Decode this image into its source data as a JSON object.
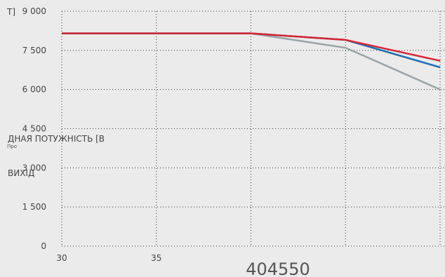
{
  "chart_data": {
    "type": "line",
    "title": "",
    "ylabel_parts": [
      "Т]",
      "ДНАЯ ПОТУЖНІСТЬ [В",
      "Про",
      "ВИХІД"
    ],
    "xlabel": "404550",
    "x_tick_labels": [
      "30",
      "35"
    ],
    "y_tick_labels": [
      "9 000",
      "7 500",
      "6 000",
      "4 500",
      "3 000",
      "1 500",
      "0"
    ],
    "xlim": [
      30,
      50
    ],
    "ylim": [
      0,
      9000
    ],
    "y_ticks": [
      9000,
      7500,
      6000,
      4500,
      3000,
      1500,
      0
    ],
    "x_gridlines": [
      30,
      35,
      40,
      45,
      50
    ],
    "grid": true,
    "series": [
      {
        "color": "#9ba4a8",
        "x": [
          30,
          40,
          45,
          50
        ],
        "y": [
          8150,
          8150,
          7600,
          6000
        ]
      },
      {
        "color": "#1f6fb5",
        "x": [
          30,
          40,
          45,
          50
        ],
        "y": [
          8150,
          8150,
          7900,
          6850
        ]
      },
      {
        "color": "#d62531",
        "x": [
          30,
          40,
          45,
          50
        ],
        "y": [
          8150,
          8150,
          7900,
          7100
        ]
      }
    ]
  }
}
